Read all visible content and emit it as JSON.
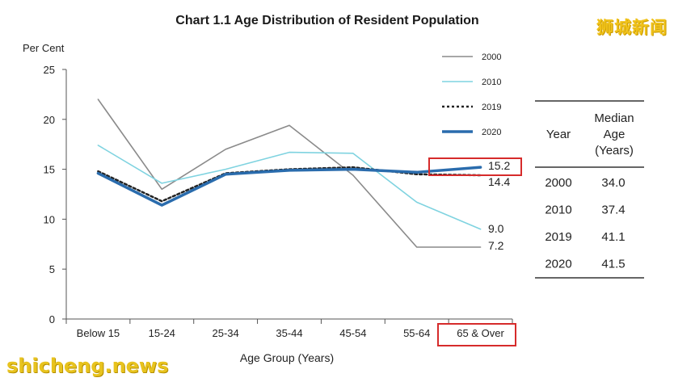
{
  "watermarks": {
    "cn": "狮城新闻",
    "en": "shicheng.news"
  },
  "chart_data": {
    "type": "line",
    "title": "Chart 1.1  Age Distribution of Resident Population",
    "ylabel": "Per Cent",
    "xlabel": "Age Group (Years)",
    "ylim": [
      0,
      25
    ],
    "yticks": [
      0,
      5,
      10,
      15,
      20,
      25
    ],
    "categories": [
      "Below 15",
      "15-24",
      "25-34",
      "35-44",
      "45-54",
      "55-64",
      "65 & Over"
    ],
    "series": [
      {
        "name": "2000",
        "color": "#8a8a8a",
        "style": "solid",
        "values": [
          22.0,
          13.0,
          17.0,
          19.4,
          14.4,
          7.2,
          7.2
        ]
      },
      {
        "name": "2010",
        "color": "#7fd3e0",
        "style": "solid",
        "values": [
          17.4,
          13.6,
          15.0,
          16.7,
          16.6,
          11.7,
          9.0
        ]
      },
      {
        "name": "2019",
        "color": "#222222",
        "style": "dotted",
        "values": [
          14.8,
          11.8,
          14.6,
          15.0,
          15.2,
          14.5,
          14.4
        ]
      },
      {
        "name": "2020",
        "color": "#2a6cad",
        "style": "thick",
        "values": [
          14.6,
          11.4,
          14.5,
          14.9,
          15.0,
          14.7,
          15.2
        ]
      }
    ],
    "end_labels": [
      "15.2",
      "14.4",
      "9.0",
      "7.2"
    ],
    "grid": false,
    "legend_position": "top-right",
    "highlights": [
      "15.2",
      "65 & Over"
    ],
    "table": {
      "headers": [
        "Year",
        "Median\nAge\n(Years)"
      ],
      "rows": [
        [
          "2000",
          "34.0"
        ],
        [
          "2010",
          "37.4"
        ],
        [
          "2019",
          "41.1"
        ],
        [
          "2020",
          "41.5"
        ]
      ]
    }
  }
}
